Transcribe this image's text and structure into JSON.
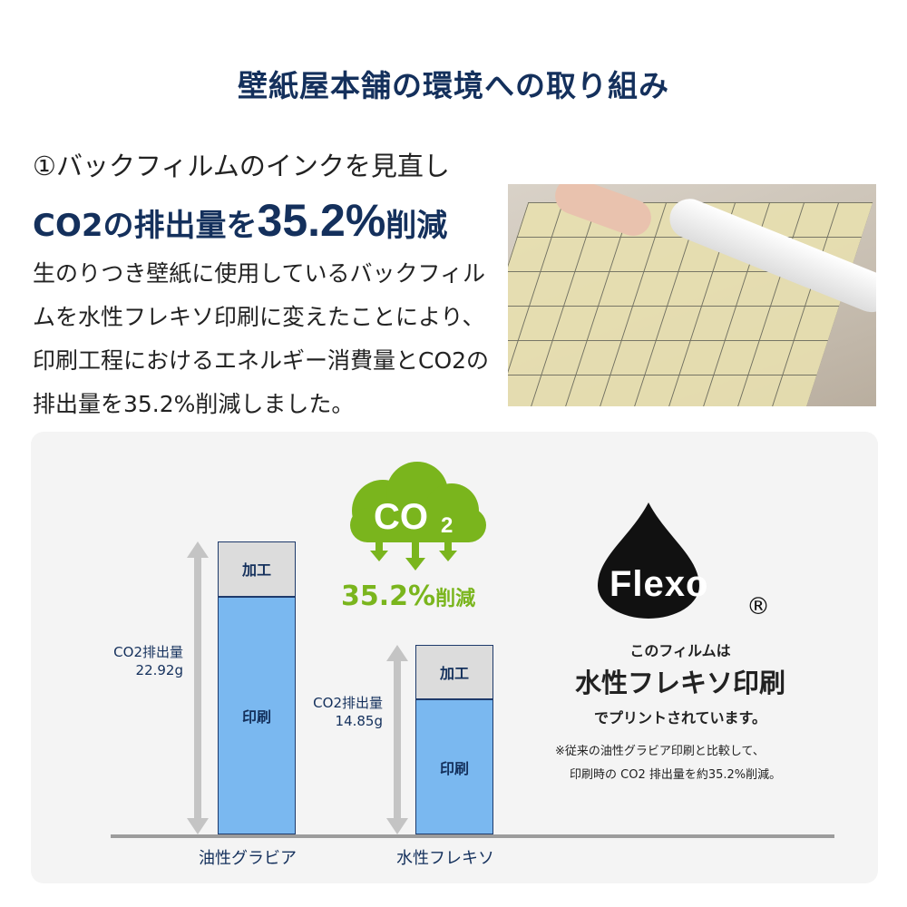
{
  "title": "壁紙屋本舗の環境への取り組み",
  "section": {
    "heading1": "①バックフィルムのインクを見直し",
    "heading2_prefix": "CO2の排出量を",
    "heading2_value": "35.2%",
    "heading2_suffix": "削減",
    "body": "生のりつき壁紙に使用しているバックフィルムを水性フレキソ印刷に変えたことにより、印刷工程におけるエネルギー消費量とCO2の排出量を35.2%削減しました。"
  },
  "badge": {
    "co2": "CO",
    "co2_sub": "2",
    "reduction_value": "35.2%",
    "reduction_suffix": "削減",
    "color": "#7ab51d"
  },
  "flexo": {
    "logo_text": "Flexo",
    "registered": "®",
    "line1": "このフィルムは",
    "line2": "水性フレキソ印刷",
    "line3": "でプリントされています。",
    "note1": "※従来の油性グラビア印刷と比較して、",
    "note2": "印刷時の CO2 排出量を約35.2%削減。"
  },
  "chart_data": {
    "type": "bar",
    "stacked": true,
    "categories": [
      "油性グラビア",
      "水性フレキソ"
    ],
    "series": [
      {
        "name": "印刷",
        "values": [
          18.62,
          10.55
        ],
        "color": "#7ab8f0"
      },
      {
        "name": "加工",
        "values": [
          4.3,
          4.3
        ],
        "color": "#dcdcdc"
      }
    ],
    "totals": [
      22.92,
      14.85
    ],
    "total_labels": [
      {
        "label": "CO2排出量",
        "value": "22.92g"
      },
      {
        "label": "CO2排出量",
        "value": "14.85g"
      }
    ],
    "ylim": [
      0,
      24
    ],
    "grid": false
  }
}
